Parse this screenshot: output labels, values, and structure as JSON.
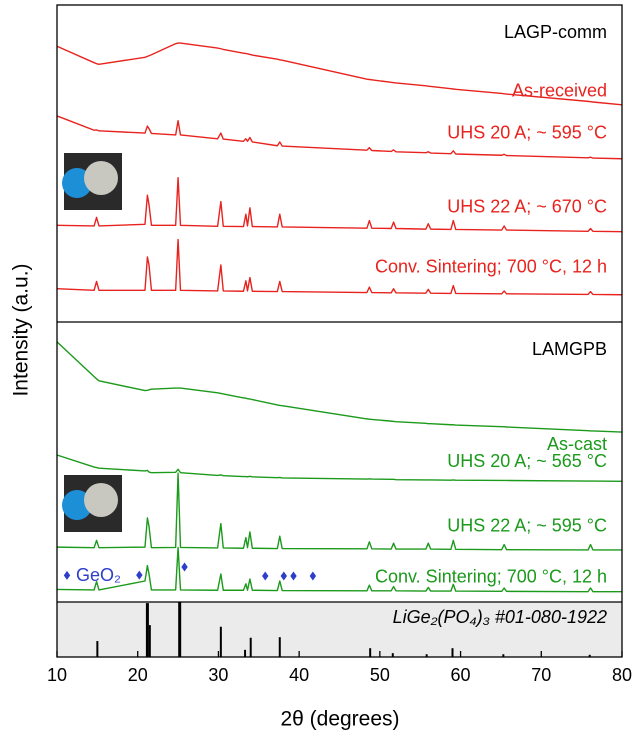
{
  "chart_data": {
    "type": "line",
    "xlabel": "2θ (degrees)",
    "ylabel": "Intensity (a.u.)",
    "xlim": [
      10,
      80
    ],
    "xticks": [
      10,
      20,
      30,
      40,
      50,
      60,
      70,
      80
    ],
    "panels": [
      {
        "type": "line",
        "title": "LAGP-comm",
        "ylim": [
          0,
          100
        ],
        "x": [
          10,
          14.6,
          14.9,
          15.2,
          20.9,
          21.2,
          21.4,
          21.7,
          24.7,
          25.0,
          25.3,
          29.9,
          30.3,
          30.6,
          33.1,
          33.4,
          33.6,
          33.9,
          34.2,
          37.3,
          37.6,
          37.9,
          48.4,
          48.7,
          49.0,
          51.4,
          51.7,
          52.0,
          55.7,
          56.0,
          56.3,
          58.8,
          59.1,
          59.4,
          65.1,
          65.4,
          65.7,
          75.8,
          76.1,
          76.4,
          80
        ],
        "series": [
          {
            "name": "As-received",
            "color": "#e8231e",
            "values": [
              87,
              81.8,
              81.5,
              81.3,
              83.5,
              83.8,
              84,
              84.3,
              87.8,
              88,
              88,
              86.4,
              86.2,
              86,
              84.8,
              84.7,
              84.6,
              84.4,
              84.2,
              82.9,
              82.7,
              82.6,
              76.6,
              76.5,
              76.4,
              75.6,
              75.5,
              75.4,
              74.5,
              74.4,
              74.3,
              73.6,
              73.5,
              73.4,
              72.1,
              72,
              71.9,
              69.6,
              69.5,
              69.4,
              68.5
            ]
          },
          {
            "name": "UHS 20 A; ~ 595 °C",
            "color": "#e8231e",
            "values": [
              65,
              60.5,
              60.6,
              60.3,
              59.6,
              61.8,
              61,
              59.5,
              59,
              63.5,
              59,
              57.8,
              59.6,
              57.7,
              57,
              57.8,
              57,
              58.2,
              56.8,
              55.6,
              56.8,
              55.5,
              54.2,
              55,
              54.1,
              53.8,
              54.3,
              53.7,
              53.4,
              53.7,
              53.3,
              53.1,
              54,
              53,
              52.6,
              52.9,
              52.5,
              51.8,
              52,
              51.7,
              51.5
            ]
          },
          {
            "name": "UHS 22 A; ~ 670 °C",
            "color": "#e8231e",
            "values": [
              30.5,
              30.3,
              33,
              30.3,
              30.8,
              40,
              37,
              30.5,
              30.5,
              45.5,
              30.5,
              30.2,
              38,
              30.2,
              30.1,
              34,
              30.3,
              36,
              30.1,
              30,
              34,
              30,
              29.6,
              32,
              29.6,
              29.5,
              31.5,
              29.5,
              29.3,
              31,
              29.3,
              29.2,
              32,
              29.2,
              29,
              30.3,
              29,
              28.6,
              29.5,
              28.6,
              28.5
            ]
          },
          {
            "name": "Conv. Sintering; 700 °C, 12 h",
            "color": "#e8231e",
            "values": [
              10.5,
              10,
              12.8,
              10,
              10,
              20.5,
              18,
              10,
              10,
              26,
              10,
              9.8,
              18,
              9.8,
              9.7,
              13,
              9.8,
              14,
              9.7,
              9.6,
              12.8,
              9.6,
              9.3,
              11,
              9.3,
              9.2,
              10.5,
              9.2,
              9.1,
              10.3,
              9.1,
              9,
              11.5,
              9,
              8.9,
              9.8,
              8.9,
              8.7,
              9.6,
              8.7,
              8.6
            ]
          }
        ]
      },
      {
        "type": "line",
        "title": "LAMGPB",
        "ylim": [
          0,
          100
        ],
        "x": [
          10,
          14.6,
          14.9,
          15.2,
          20.9,
          21.2,
          21.4,
          21.7,
          24.7,
          25.0,
          25.3,
          29.9,
          30.3,
          30.6,
          33.1,
          33.4,
          33.6,
          33.9,
          34.2,
          37.3,
          37.6,
          37.9,
          48.4,
          48.7,
          49.0,
          51.4,
          51.7,
          52.0,
          55.7,
          56.0,
          56.3,
          58.8,
          59.1,
          59.4,
          65.1,
          65.4,
          65.7,
          75.8,
          76.1,
          76.4,
          80
        ],
        "series": [
          {
            "name": "As-cast",
            "color": "#1b9a1b",
            "values": [
              92.9,
              80.5,
              79.7,
              79,
              75.5,
              75.6,
              75.8,
              76,
              76.4,
              76.4,
              76.4,
              74.7,
              74.5,
              74.3,
              72.9,
              72.8,
              72.6,
              72.5,
              72.3,
              70.4,
              70.2,
              70.1,
              65.4,
              65.3,
              65.2,
              64.6,
              64.5,
              64.4,
              63.8,
              63.7,
              63.7,
              63.3,
              63.3,
              63.2,
              62.6,
              62.6,
              62.5,
              61.2,
              61.1,
              61.1,
              60.7
            ]
          },
          {
            "name": "UHS 20 A; ~ 565 °C",
            "color": "#1b9a1b",
            "values": [
              52.5,
              48.2,
              48,
              47.8,
              46.8,
              47,
              46.4,
              46.2,
              46.3,
              47.4,
              46.2,
              45.2,
              45.4,
              45.1,
              44.8,
              44.8,
              44.7,
              44.9,
              44.7,
              44.4,
              44.5,
              44.3,
              43.9,
              44,
              43.9,
              43.8,
              43.8,
              43.7,
              43.6,
              43.6,
              43.6,
              43.5,
              43.6,
              43.5,
              43.4,
              43.4,
              43.4,
              43.2,
              43.2,
              43.2,
              43.1
            ]
          },
          {
            "name": "UHS 22 A; ~ 595 °C",
            "color": "#1b9a1b",
            "values": [
              19.6,
              19.4,
              22,
              19.4,
              19.6,
              30,
              27,
              19.4,
              19.5,
              46,
              19.5,
              19.3,
              28,
              19.3,
              19.2,
              23,
              19.4,
              25,
              19.2,
              19.1,
              23.5,
              19.1,
              19,
              21.5,
              19,
              18.9,
              21,
              18.9,
              18.9,
              21,
              18.9,
              18.8,
              22,
              18.8,
              18.7,
              20.5,
              18.7,
              18.6,
              20.5,
              18.6,
              18.6
            ]
          },
          {
            "name": "Conv. Sintering; 700 °C, 12 h",
            "color": "#1b9a1b",
            "values": [
              4.5,
              4.3,
              7.3,
              4.3,
              7.5,
              13,
              10,
              4.3,
              4.3,
              19.5,
              4.3,
              4.2,
              10,
              4.2,
              4.2,
              6.5,
              4.2,
              8.2,
              4.2,
              4.1,
              7.5,
              4.1,
              4,
              6,
              4,
              4,
              5.5,
              4,
              3.9,
              5.2,
              3.9,
              3.9,
              6.3,
              3.9,
              3.8,
              5,
              3.8,
              3.7,
              5,
              3.7,
              3.7
            ]
          }
        ],
        "markers": {
          "name": "GeO₂",
          "color": "#2d3ec8",
          "x": [
            20.2,
            25.8,
            35.8,
            38.1,
            39.3,
            41.7
          ],
          "values": [
            9.6,
            12.5,
            9.3,
            9.3,
            9.3,
            9.3
          ]
        }
      },
      {
        "type": "stem",
        "title": "LiGe₂(PO₄)₃ #01-080-1922",
        "ylim": [
          0,
          100
        ],
        "color": "#000000",
        "x": [
          15,
          21.2,
          21.5,
          25.2,
          30.3,
          33.3,
          34,
          37.6,
          48.8,
          51.6,
          55.8,
          59,
          65.3,
          76
        ],
        "values": [
          29,
          98,
          58,
          100,
          55,
          13,
          35,
          36,
          16,
          7,
          5,
          16,
          5,
          4
        ]
      }
    ]
  }
}
